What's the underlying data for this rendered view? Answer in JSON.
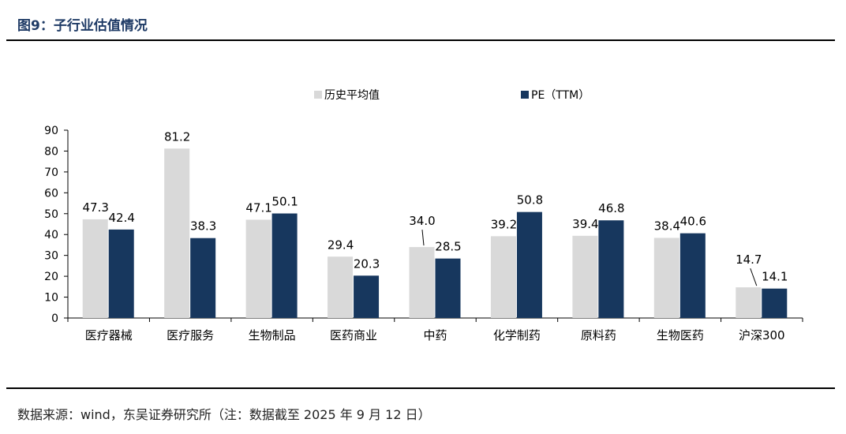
{
  "figure": {
    "title": "图9：子行业估值情况",
    "source": "数据来源：wind，东吴证券研究所（注：数据截至 2025 年 9 月 12 日）"
  },
  "colors": {
    "series1": "#d9d9d9",
    "series2": "#17375e",
    "title": "#1f3b66"
  },
  "chart_data": {
    "type": "bar",
    "categories": [
      "医疗器械",
      "医疗服务",
      "生物制品",
      "医药商业",
      "中药",
      "化学制药",
      "原料药",
      "生物医药",
      "沪深300"
    ],
    "series": [
      {
        "name": "历史平均值",
        "values": [
          47.3,
          81.2,
          47.1,
          29.4,
          34.0,
          39.2,
          39.4,
          38.4,
          14.7
        ],
        "labels": [
          "47.3",
          "81.2",
          "47.1",
          "29.4",
          "34.0",
          "39.2",
          "39.4",
          "38.4",
          "14.7"
        ]
      },
      {
        "name": "PE（TTM）",
        "values": [
          42.4,
          38.3,
          50.1,
          20.3,
          28.5,
          50.8,
          46.8,
          40.6,
          14.1
        ],
        "labels": [
          "42.4",
          "38.3",
          "50.1",
          "20.3",
          "28.5",
          "50.8",
          "46.8",
          "40.6",
          "14.1"
        ]
      }
    ],
    "ylim": [
      0,
      90
    ],
    "yticks": [
      "0",
      "10",
      "20",
      "30",
      "40",
      "50",
      "60",
      "70",
      "80",
      "90"
    ],
    "legend": "top-center",
    "grid": false
  }
}
